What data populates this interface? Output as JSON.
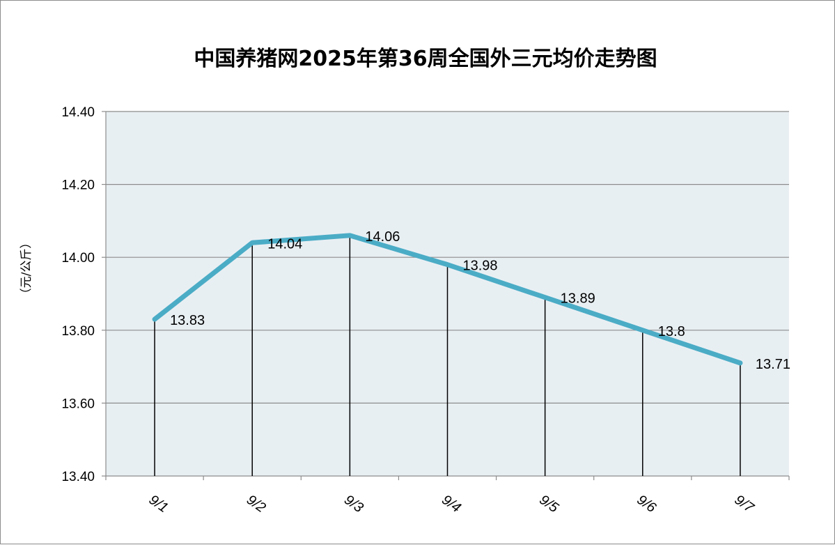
{
  "chart_data": {
    "type": "line",
    "title": "中国养猪网2025年第36周全国外三元均价走势图",
    "ylabel": "（元/公斤）",
    "xlabel": "",
    "categories": [
      "9/1",
      "9/2",
      "9/3",
      "9/4",
      "9/5",
      "9/6",
      "9/7"
    ],
    "values": [
      13.83,
      14.04,
      14.06,
      13.98,
      13.89,
      13.8,
      13.71
    ],
    "data_labels": [
      "13.83",
      "14.04",
      "14.06",
      "13.98",
      "13.89",
      "13.8",
      "13.71"
    ],
    "ylim": [
      13.4,
      14.4
    ],
    "yticks": [
      "13.40",
      "13.60",
      "13.80",
      "14.00",
      "14.20",
      "14.40"
    ],
    "grid": true,
    "drop_lines": true,
    "line_color": "#4bacc6",
    "plot_background": "#e8eff3"
  }
}
